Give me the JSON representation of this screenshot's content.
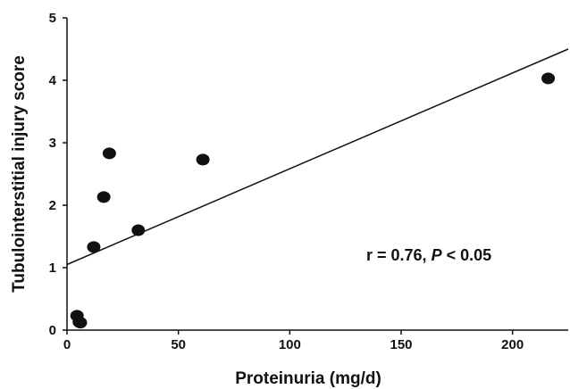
{
  "chart_data": {
    "type": "scatter",
    "xlabel": "Proteinuria (mg/d)",
    "ylabel": "Tubulointerstitial injury score",
    "xlim": [
      0,
      225
    ],
    "ylim": [
      0,
      5
    ],
    "xticks": [
      "0",
      "50",
      "100",
      "150",
      "200"
    ],
    "yticks": [
      "0",
      "1",
      "2",
      "3",
      "4",
      "5"
    ],
    "points": [
      {
        "x": 4.5,
        "y": 0.23
      },
      {
        "x": 5.5,
        "y": 0.13
      },
      {
        "x": 6,
        "y": 0.12
      },
      {
        "x": 12,
        "y": 1.33
      },
      {
        "x": 16.5,
        "y": 2.13
      },
      {
        "x": 19,
        "y": 2.83
      },
      {
        "x": 32,
        "y": 1.6
      },
      {
        "x": 61,
        "y": 2.73
      },
      {
        "x": 216,
        "y": 4.03
      }
    ],
    "fit_line": {
      "x0": 0,
      "y0": 1.05,
      "x1": 225,
      "y1": 4.5
    },
    "annotation": {
      "prefix": "r = 0.76, ",
      "italic": "P",
      "suffix": " < 0.05"
    },
    "grid": false,
    "legend": "none"
  }
}
